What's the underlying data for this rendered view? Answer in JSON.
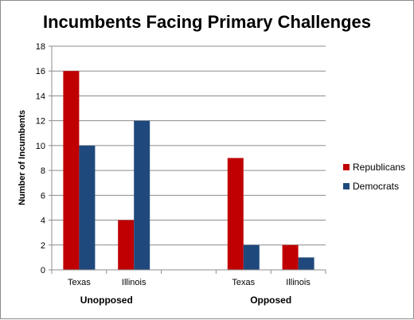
{
  "chart_data": {
    "type": "bar",
    "title": "Incumbents Facing Primary Challenges",
    "ylabel": "Number of Incumbents",
    "xlabel": "",
    "ylim": [
      0,
      18
    ],
    "yticks": [
      "0",
      "2",
      "4",
      "6",
      "8",
      "10",
      "12",
      "14",
      "16",
      "18"
    ],
    "grid": true,
    "legend_position": "right",
    "categories": [
      "Texas",
      "Illinois",
      "",
      "Texas",
      "Illinois"
    ],
    "groups": [
      "Unopposed",
      "Opposed"
    ],
    "series": [
      {
        "name": "Republicans",
        "color": "#c00000",
        "values": [
          16,
          4,
          null,
          9,
          2
        ]
      },
      {
        "name": "Democrats",
        "color": "#1f497d",
        "values": [
          10,
          12,
          null,
          2,
          1
        ]
      }
    ]
  }
}
